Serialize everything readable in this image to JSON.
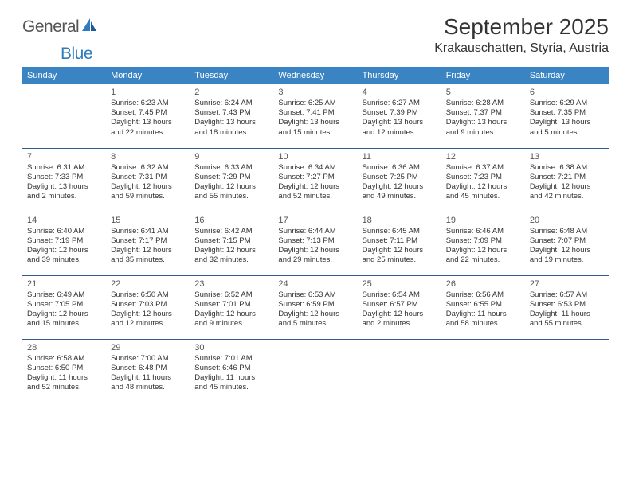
{
  "brand": {
    "general": "General",
    "blue": "Blue"
  },
  "title": "September 2025",
  "location": "Krakauschatten, Styria, Austria",
  "colors": {
    "header_bg": "#3b84c4",
    "header_text": "#ffffff",
    "border": "#2f5f8a",
    "body_text": "#333333",
    "brand_gray": "#555555",
    "brand_blue": "#2f7bbf",
    "page_bg": "#ffffff"
  },
  "typography": {
    "title_fontsize": 28,
    "location_fontsize": 16,
    "dayheader_fontsize": 11,
    "daynum_fontsize": 11,
    "info_fontsize": 9.5
  },
  "day_names": [
    "Sunday",
    "Monday",
    "Tuesday",
    "Wednesday",
    "Thursday",
    "Friday",
    "Saturday"
  ],
  "weeks": [
    [
      null,
      {
        "n": "1",
        "sr": "Sunrise: 6:23 AM",
        "ss": "Sunset: 7:45 PM",
        "dl": "Daylight: 13 hours and 22 minutes."
      },
      {
        "n": "2",
        "sr": "Sunrise: 6:24 AM",
        "ss": "Sunset: 7:43 PM",
        "dl": "Daylight: 13 hours and 18 minutes."
      },
      {
        "n": "3",
        "sr": "Sunrise: 6:25 AM",
        "ss": "Sunset: 7:41 PM",
        "dl": "Daylight: 13 hours and 15 minutes."
      },
      {
        "n": "4",
        "sr": "Sunrise: 6:27 AM",
        "ss": "Sunset: 7:39 PM",
        "dl": "Daylight: 13 hours and 12 minutes."
      },
      {
        "n": "5",
        "sr": "Sunrise: 6:28 AM",
        "ss": "Sunset: 7:37 PM",
        "dl": "Daylight: 13 hours and 9 minutes."
      },
      {
        "n": "6",
        "sr": "Sunrise: 6:29 AM",
        "ss": "Sunset: 7:35 PM",
        "dl": "Daylight: 13 hours and 5 minutes."
      }
    ],
    [
      {
        "n": "7",
        "sr": "Sunrise: 6:31 AM",
        "ss": "Sunset: 7:33 PM",
        "dl": "Daylight: 13 hours and 2 minutes."
      },
      {
        "n": "8",
        "sr": "Sunrise: 6:32 AM",
        "ss": "Sunset: 7:31 PM",
        "dl": "Daylight: 12 hours and 59 minutes."
      },
      {
        "n": "9",
        "sr": "Sunrise: 6:33 AM",
        "ss": "Sunset: 7:29 PM",
        "dl": "Daylight: 12 hours and 55 minutes."
      },
      {
        "n": "10",
        "sr": "Sunrise: 6:34 AM",
        "ss": "Sunset: 7:27 PM",
        "dl": "Daylight: 12 hours and 52 minutes."
      },
      {
        "n": "11",
        "sr": "Sunrise: 6:36 AM",
        "ss": "Sunset: 7:25 PM",
        "dl": "Daylight: 12 hours and 49 minutes."
      },
      {
        "n": "12",
        "sr": "Sunrise: 6:37 AM",
        "ss": "Sunset: 7:23 PM",
        "dl": "Daylight: 12 hours and 45 minutes."
      },
      {
        "n": "13",
        "sr": "Sunrise: 6:38 AM",
        "ss": "Sunset: 7:21 PM",
        "dl": "Daylight: 12 hours and 42 minutes."
      }
    ],
    [
      {
        "n": "14",
        "sr": "Sunrise: 6:40 AM",
        "ss": "Sunset: 7:19 PM",
        "dl": "Daylight: 12 hours and 39 minutes."
      },
      {
        "n": "15",
        "sr": "Sunrise: 6:41 AM",
        "ss": "Sunset: 7:17 PM",
        "dl": "Daylight: 12 hours and 35 minutes."
      },
      {
        "n": "16",
        "sr": "Sunrise: 6:42 AM",
        "ss": "Sunset: 7:15 PM",
        "dl": "Daylight: 12 hours and 32 minutes."
      },
      {
        "n": "17",
        "sr": "Sunrise: 6:44 AM",
        "ss": "Sunset: 7:13 PM",
        "dl": "Daylight: 12 hours and 29 minutes."
      },
      {
        "n": "18",
        "sr": "Sunrise: 6:45 AM",
        "ss": "Sunset: 7:11 PM",
        "dl": "Daylight: 12 hours and 25 minutes."
      },
      {
        "n": "19",
        "sr": "Sunrise: 6:46 AM",
        "ss": "Sunset: 7:09 PM",
        "dl": "Daylight: 12 hours and 22 minutes."
      },
      {
        "n": "20",
        "sr": "Sunrise: 6:48 AM",
        "ss": "Sunset: 7:07 PM",
        "dl": "Daylight: 12 hours and 19 minutes."
      }
    ],
    [
      {
        "n": "21",
        "sr": "Sunrise: 6:49 AM",
        "ss": "Sunset: 7:05 PM",
        "dl": "Daylight: 12 hours and 15 minutes."
      },
      {
        "n": "22",
        "sr": "Sunrise: 6:50 AM",
        "ss": "Sunset: 7:03 PM",
        "dl": "Daylight: 12 hours and 12 minutes."
      },
      {
        "n": "23",
        "sr": "Sunrise: 6:52 AM",
        "ss": "Sunset: 7:01 PM",
        "dl": "Daylight: 12 hours and 9 minutes."
      },
      {
        "n": "24",
        "sr": "Sunrise: 6:53 AM",
        "ss": "Sunset: 6:59 PM",
        "dl": "Daylight: 12 hours and 5 minutes."
      },
      {
        "n": "25",
        "sr": "Sunrise: 6:54 AM",
        "ss": "Sunset: 6:57 PM",
        "dl": "Daylight: 12 hours and 2 minutes."
      },
      {
        "n": "26",
        "sr": "Sunrise: 6:56 AM",
        "ss": "Sunset: 6:55 PM",
        "dl": "Daylight: 11 hours and 58 minutes."
      },
      {
        "n": "27",
        "sr": "Sunrise: 6:57 AM",
        "ss": "Sunset: 6:53 PM",
        "dl": "Daylight: 11 hours and 55 minutes."
      }
    ],
    [
      {
        "n": "28",
        "sr": "Sunrise: 6:58 AM",
        "ss": "Sunset: 6:50 PM",
        "dl": "Daylight: 11 hours and 52 minutes."
      },
      {
        "n": "29",
        "sr": "Sunrise: 7:00 AM",
        "ss": "Sunset: 6:48 PM",
        "dl": "Daylight: 11 hours and 48 minutes."
      },
      {
        "n": "30",
        "sr": "Sunrise: 7:01 AM",
        "ss": "Sunset: 6:46 PM",
        "dl": "Daylight: 11 hours and 45 minutes."
      },
      null,
      null,
      null,
      null
    ]
  ]
}
